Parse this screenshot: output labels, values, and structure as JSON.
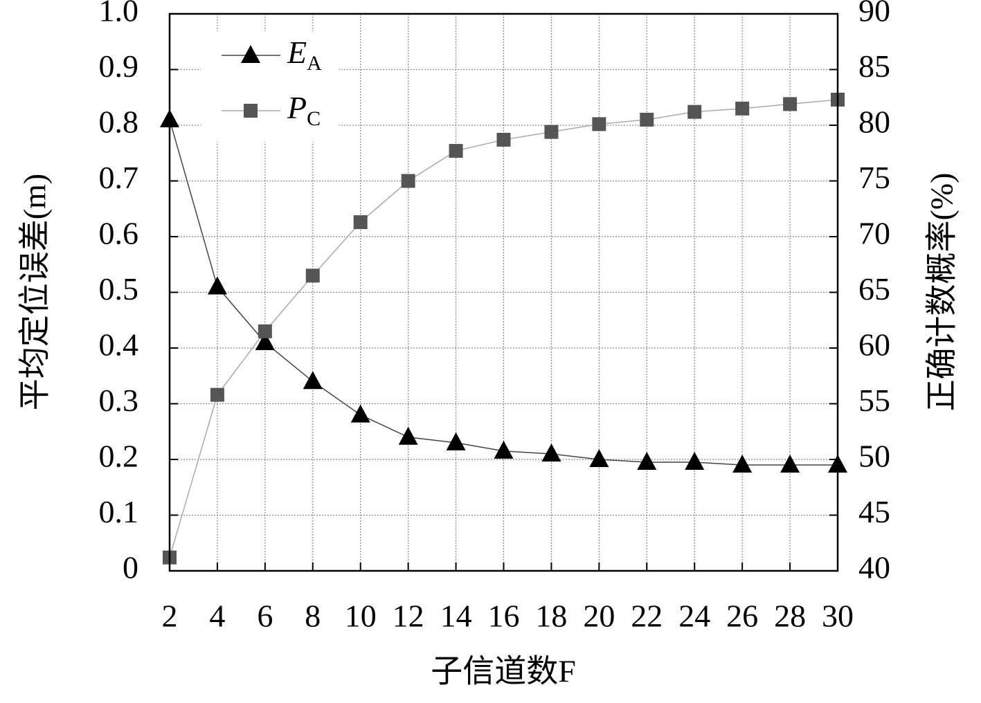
{
  "chart_data": {
    "type": "line",
    "x_label": "子信道数F",
    "y_label": "平均定位误差(m)",
    "y2_label": "正确计数概率(%)",
    "x": [
      2,
      4,
      6,
      8,
      10,
      12,
      14,
      16,
      18,
      20,
      22,
      24,
      26,
      28,
      30
    ],
    "xlim": [
      2,
      30
    ],
    "xticks": [
      2,
      4,
      6,
      8,
      10,
      12,
      14,
      16,
      18,
      20,
      22,
      24,
      26,
      28,
      30
    ],
    "ylim": [
      0,
      1
    ],
    "yticks": [
      0,
      0.1,
      0.2,
      0.3,
      0.4,
      0.5,
      0.6,
      0.7,
      0.8,
      0.9,
      {
        "value": 1,
        "label": "1.0"
      }
    ],
    "y2lim": [
      40,
      90
    ],
    "y2ticks": [
      40,
      45,
      50,
      55,
      60,
      65,
      70,
      75,
      80,
      85,
      90
    ],
    "grid": true,
    "legend": "upper left",
    "series": [
      {
        "name": "E",
        "subscript": "A",
        "color": "#000000",
        "line_color": "#444444",
        "marker": "triangle",
        "axis": "y",
        "values": [
          0.81,
          0.51,
          0.41,
          0.34,
          0.28,
          0.24,
          0.23,
          0.215,
          0.21,
          0.2,
          0.195,
          0.195,
          0.19,
          0.19,
          0.19
        ]
      },
      {
        "name": "P",
        "subscript": "C",
        "color": "#555555",
        "line_color": "#aaaaaa",
        "marker": "square",
        "axis": "y2",
        "values": [
          41.2,
          55.8,
          61.5,
          66.5,
          71.3,
          75.0,
          77.7,
          78.7,
          79.4,
          80.1,
          80.5,
          81.2,
          81.5,
          81.9,
          82.3
        ]
      }
    ]
  }
}
